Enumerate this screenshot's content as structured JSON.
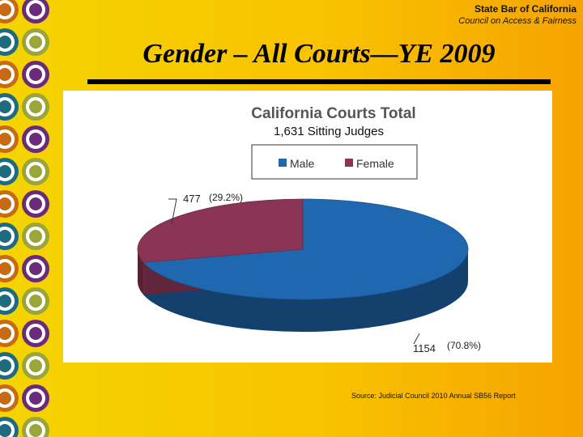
{
  "header": {
    "organization": "State Bar of California",
    "subtitle": "Council on Access & Fairness"
  },
  "slide": {
    "title": "Gender – All Courts—YE 2009",
    "source": "Source: Judicial Council 2010 Annual SB56 Report"
  },
  "chart_data": {
    "type": "pie",
    "title": "California Courts Total",
    "subtitle": "1,631 Sitting Judges",
    "legend_position": "top",
    "labels": [
      "Male",
      "Female"
    ],
    "values": [
      1154,
      477
    ],
    "value_labels": [
      "1154",
      "477"
    ],
    "percent_labels": [
      "(70.8%)",
      "(29.2%)"
    ],
    "colors": [
      "#1f68b0",
      "#8b3556"
    ]
  },
  "colors": {
    "background": "#f8c300",
    "ring_colors": [
      "#c86a12",
      "#6b2a7a",
      "#1e6a7e",
      "#9aa63a"
    ]
  }
}
